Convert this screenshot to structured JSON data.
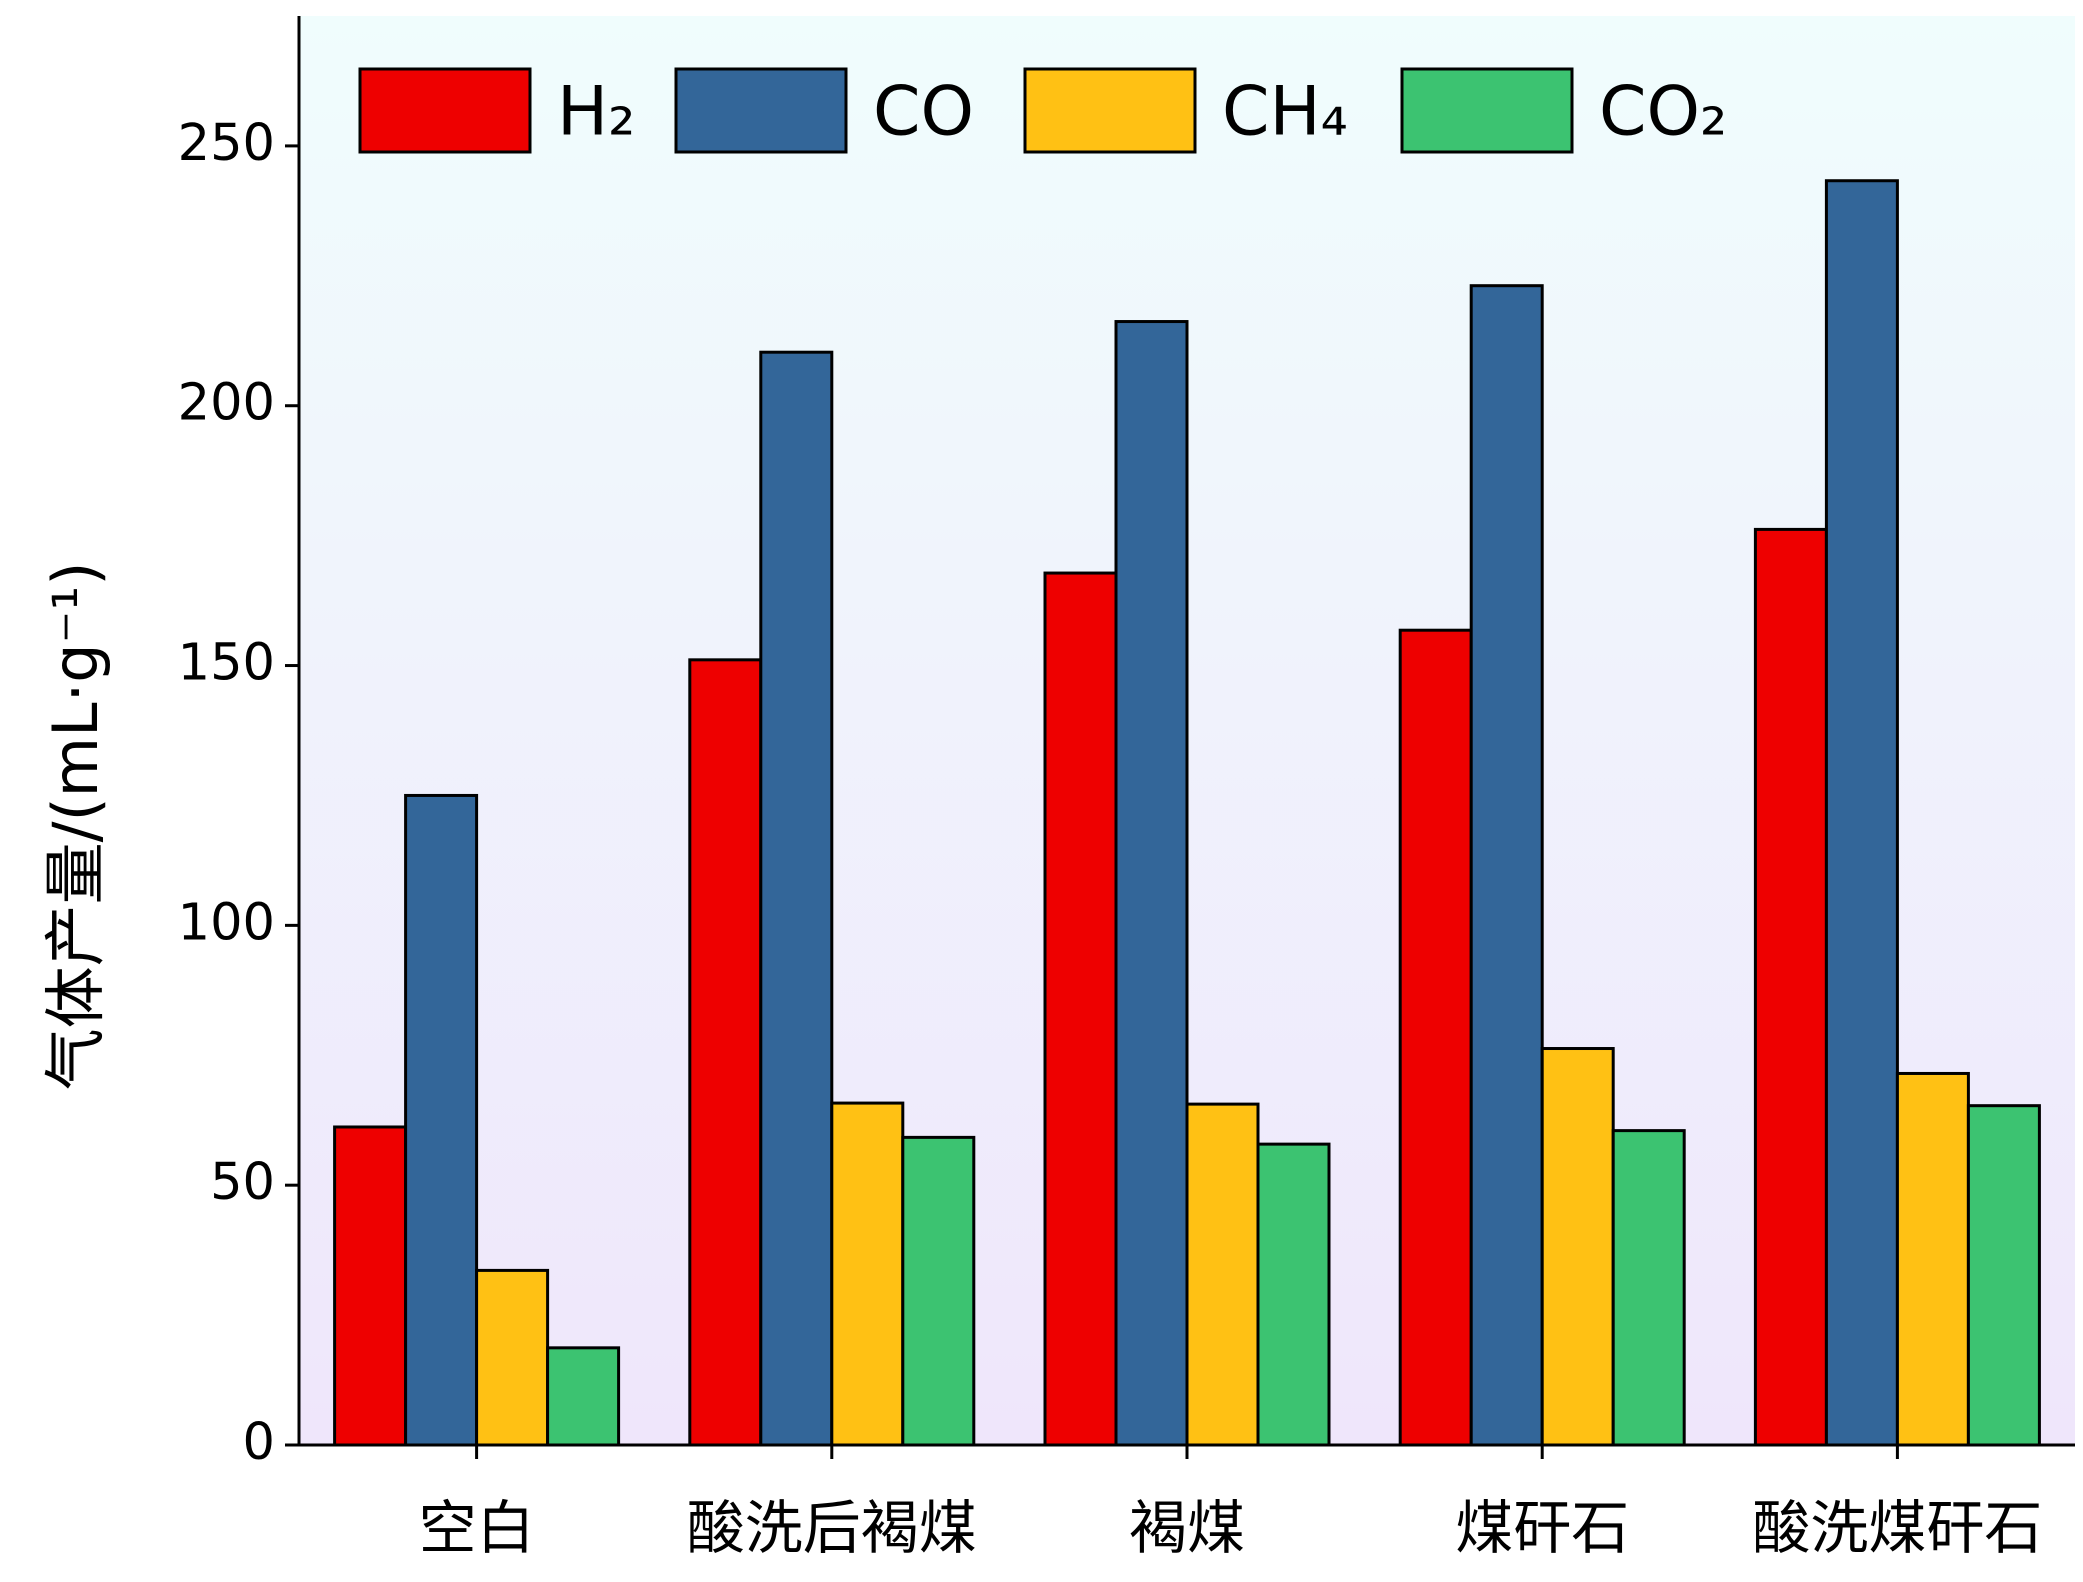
{
  "chart_data": {
    "type": "bar",
    "y_label": "气体产量/(mL·g⁻¹)",
    "categories": [
      "空白",
      "酸洗后褐煤",
      "褐煤",
      "煤矸石",
      "酸洗煤矸石"
    ],
    "series": [
      {
        "name": "H₂",
        "color": "#ee0000",
        "values": [
          61.2,
          151.1,
          167.8,
          156.8,
          176.2
        ]
      },
      {
        "name": "CO",
        "color": "#336699",
        "values": [
          125,
          210.3,
          216.2,
          223.1,
          243.3
        ]
      },
      {
        "name": "CH₄",
        "color": "#ffc114",
        "values": [
          33.6,
          65.8,
          65.6,
          76.3,
          71.5
        ]
      },
      {
        "name": "CO₂",
        "color": "#3cc371",
        "values": [
          18.7,
          59.2,
          57.9,
          60.5,
          65.3
        ]
      }
    ],
    "ylim": [
      0,
      275
    ],
    "yticks": [
      0,
      50,
      100,
      150,
      200,
      250
    ]
  }
}
